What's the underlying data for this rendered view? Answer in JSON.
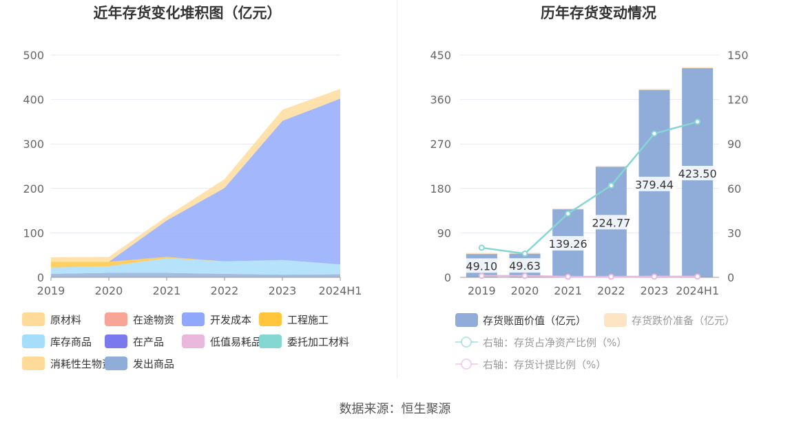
{
  "chart_data": [
    {
      "type": "area",
      "title": "近年存货变化堆积图（亿元）",
      "categories": [
        "2019",
        "2020",
        "2021",
        "2022",
        "2023",
        "2024H1"
      ],
      "ylim": [
        0,
        500
      ],
      "yticks": [
        "0",
        "100",
        "200",
        "300",
        "400",
        "500"
      ],
      "stacked": true,
      "series": [
        {
          "name": "原材料",
          "color": "#FFDB9A",
          "values": [
            10,
            11,
            9,
            20,
            25,
            22
          ]
        },
        {
          "name": "在途物资",
          "color": "#F8A598",
          "values": [
            0,
            0,
            0,
            0,
            0,
            0
          ]
        },
        {
          "name": "开发成本",
          "color": "#8FA8FB",
          "values": [
            0,
            0,
            82,
            165,
            313,
            373
          ]
        },
        {
          "name": "工程施工",
          "color": "#FFC53D",
          "values": [
            13,
            10,
            3,
            0,
            0,
            0
          ]
        },
        {
          "name": "库存商品",
          "color": "#A6DDFA",
          "values": [
            14,
            15,
            33,
            28,
            33,
            22
          ]
        },
        {
          "name": "在产品",
          "color": "#7A7AEE",
          "values": [
            0,
            0,
            0,
            0,
            0,
            0
          ]
        },
        {
          "name": "低值易耗品",
          "color": "#E9B8DC",
          "values": [
            0,
            0,
            0,
            0,
            0,
            0
          ]
        },
        {
          "name": "委托加工材料",
          "color": "#86D6D3",
          "values": [
            0,
            0,
            0,
            0,
            0,
            0
          ]
        },
        {
          "name": "消耗性生物资产",
          "color": "#FFDB9A",
          "values": [
            0,
            0,
            0,
            0,
            0,
            0
          ]
        },
        {
          "name": "发出商品",
          "color": "#8FADD8",
          "values": [
            8,
            10,
            10,
            8,
            6,
            7
          ]
        }
      ],
      "legend_position": "bottom",
      "grid": true
    },
    {
      "type": "bar+line",
      "title": "历年存货变动情况",
      "categories": [
        "2019",
        "2020",
        "2021",
        "2022",
        "2023",
        "2024H1"
      ],
      "ylim_left": [
        0,
        450
      ],
      "yticks_left": [
        "0",
        "90",
        "180",
        "270",
        "360",
        "450"
      ],
      "ylim_right": [
        0,
        150
      ],
      "yticks_right": [
        "0",
        "30",
        "60",
        "90",
        "120",
        "150"
      ],
      "bars": [
        {
          "name": "存货账面价值（亿元）",
          "color": "#8FADD8",
          "values": [
            49.1,
            49.63,
            139.26,
            224.77,
            379.44,
            423.5
          ],
          "labels": [
            "49.10",
            "49.63",
            "139.26",
            "224.77",
            "379.44",
            "423.50"
          ]
        },
        {
          "name": "存货跌价准备（亿元）",
          "color": "#FDE5C4",
          "values": [
            0.2,
            0.2,
            0.5,
            1.0,
            2.0,
            2.0
          ]
        }
      ],
      "lines": [
        {
          "name": "右轴：存货占净资产比例（%）",
          "color": "#86D6D3",
          "values": [
            20,
            16,
            43,
            62,
            97,
            105
          ]
        },
        {
          "name": "右轴：存货计提比例（%）",
          "color": "#EAB8DC",
          "values": [
            1.0,
            1.0,
            0.4,
            0.4,
            0.5,
            0.5
          ]
        }
      ],
      "legend_position": "bottom",
      "grid": true
    }
  ],
  "source": "数据来源：恒生聚源"
}
